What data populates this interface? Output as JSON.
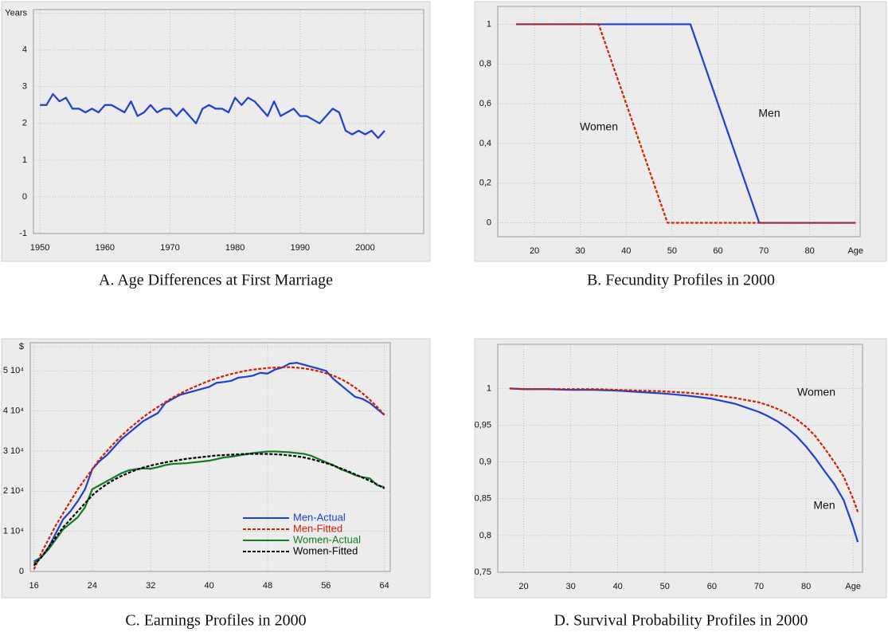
{
  "chart_data": [
    {
      "type": "line",
      "title": "A. Age Differences at First Marriage",
      "x": [
        1950,
        1951,
        1952,
        1953,
        1954,
        1955,
        1956,
        1957,
        1958,
        1959,
        1960,
        1961,
        1962,
        1963,
        1964,
        1965,
        1966,
        1967,
        1968,
        1969,
        1970,
        1971,
        1972,
        1973,
        1974,
        1975,
        1976,
        1977,
        1978,
        1979,
        1980,
        1981,
        1982,
        1983,
        1984,
        1985,
        1986,
        1987,
        1988,
        1989,
        1990,
        1991,
        1992,
        1993,
        1994,
        1995,
        1996,
        1997,
        1998,
        1999,
        2000,
        2001,
        2002,
        2003
      ],
      "values": [
        2.5,
        2.5,
        2.8,
        2.6,
        2.7,
        2.4,
        2.4,
        2.3,
        2.4,
        2.3,
        2.5,
        2.5,
        2.4,
        2.3,
        2.6,
        2.2,
        2.3,
        2.5,
        2.3,
        2.4,
        2.4,
        2.2,
        2.4,
        2.2,
        2.0,
        2.4,
        2.5,
        2.4,
        2.4,
        2.3,
        2.7,
        2.5,
        2.7,
        2.6,
        2.4,
        2.2,
        2.6,
        2.2,
        2.3,
        2.4,
        2.2,
        2.2,
        2.1,
        2.0,
        2.2,
        2.4,
        2.3,
        1.8,
        1.7,
        1.8,
        1.7,
        1.8,
        1.6,
        1.8
      ],
      "color": "#1f3fd0",
      "xlim": [
        1949,
        2009
      ],
      "xticks": [
        1950,
        1960,
        1970,
        1980,
        1990,
        2000
      ],
      "ylim": [
        -1,
        5.1
      ],
      "yticks": [
        -1,
        0,
        1,
        2,
        3,
        4,
        {
          "value": 5,
          "label": "Years"
        }
      ],
      "grid": true
    },
    {
      "type": "line",
      "title": "B. Fecundity Profiles in 2000",
      "series": [
        {
          "name": "Men",
          "color": "#1f3fd0",
          "dashed": false,
          "x": [
            16,
            54,
            69,
            90
          ],
          "values": [
            1,
            1,
            0,
            0
          ]
        },
        {
          "name": "Women",
          "color": "#cc2200",
          "dashed": true,
          "x": [
            16,
            34,
            49,
            90
          ],
          "values": [
            1,
            1,
            0,
            0
          ]
        }
      ],
      "xlim": [
        12,
        91
      ],
      "xticks": [
        20,
        30,
        40,
        50,
        60,
        70,
        80,
        {
          "value": 90,
          "label": "Age"
        }
      ],
      "ylim": [
        -0.07,
        1.09
      ],
      "yticks": [
        0,
        {
          "value": 0.2,
          "label": "0,2"
        },
        {
          "value": 0.4,
          "label": "0,4"
        },
        {
          "value": 0.6,
          "label": "0,6"
        },
        {
          "value": 0.8,
          "label": "0,8"
        },
        1
      ],
      "grid": true
    },
    {
      "type": "line",
      "title": "C. Earnings Profiles in 2000",
      "x": [
        16,
        17,
        18,
        19,
        20,
        21,
        22,
        23,
        24,
        25,
        26,
        27,
        28,
        29,
        30,
        31,
        32,
        33,
        34,
        35,
        36,
        37,
        38,
        39,
        40,
        41,
        42,
        43,
        44,
        45,
        46,
        47,
        48,
        49,
        50,
        51,
        52,
        53,
        54,
        55,
        56,
        57,
        58,
        59,
        60,
        61,
        62,
        63,
        64
      ],
      "series": [
        {
          "name": "Men-Actual",
          "color": "#1f3fd0",
          "dashed": false,
          "values": [
            2500,
            3500,
            6000,
            9500,
            13000,
            15000,
            17500,
            20500,
            25500,
            27500,
            29000,
            31000,
            33000,
            34500,
            36000,
            37500,
            38500,
            39500,
            42000,
            43000,
            44000,
            44500,
            45000,
            45500,
            46000,
            47000,
            47200,
            47500,
            48300,
            48500,
            48800,
            49500,
            49300,
            50300,
            50800,
            51800,
            52000,
            51500,
            51000,
            50500,
            50000,
            48000,
            46500,
            45000,
            43500,
            43000,
            42000,
            40500,
            39000
          ]
        },
        {
          "name": "Men-Fitted",
          "color": "#cc2200",
          "dashed": true,
          "values": [
            500,
            4500,
            8000,
            11500,
            14500,
            17500,
            20500,
            23000,
            25500,
            28000,
            30000,
            32000,
            33800,
            35500,
            37000,
            38500,
            39800,
            41000,
            42200,
            43300,
            44300,
            45200,
            46000,
            46800,
            47500,
            48100,
            48700,
            49200,
            49600,
            50000,
            50300,
            50500,
            50700,
            50800,
            50900,
            50900,
            50800,
            50600,
            50300,
            49900,
            49400,
            48800,
            48000,
            47000,
            45800,
            44400,
            42800,
            41000,
            39000
          ]
        },
        {
          "name": "Women-Actual",
          "color": "#117a22",
          "dashed": false,
          "values": [
            2000,
            3500,
            5500,
            8000,
            10500,
            12000,
            13500,
            16000,
            20500,
            21500,
            22500,
            23500,
            24500,
            25200,
            25500,
            25700,
            25600,
            26000,
            26500,
            26800,
            26900,
            27000,
            27200,
            27400,
            27600,
            28000,
            28400,
            28600,
            28900,
            29200,
            29500,
            29700,
            29900,
            29900,
            29800,
            29700,
            29500,
            29300,
            28800,
            28000,
            27200,
            26500,
            25500,
            24800,
            24000,
            23500,
            23200,
            21500,
            21000
          ]
        },
        {
          "name": "Women-Fitted",
          "color": "#000000",
          "dashed": true,
          "values": [
            1500,
            3500,
            6000,
            8500,
            11000,
            13000,
            15000,
            17000,
            19000,
            20500,
            21800,
            22900,
            23800,
            24600,
            25300,
            25900,
            26400,
            26800,
            27200,
            27500,
            27800,
            28100,
            28300,
            28500,
            28700,
            28900,
            29000,
            29100,
            29200,
            29300,
            29300,
            29300,
            29300,
            29200,
            29100,
            28900,
            28700,
            28400,
            28000,
            27500,
            27000,
            26400,
            25700,
            25000,
            24200,
            23400,
            22600,
            21700,
            20700
          ]
        }
      ],
      "xlim": [
        15.5,
        64.8
      ],
      "xticks": [
        16,
        24,
        32,
        40,
        48,
        56,
        64
      ],
      "ylim": [
        0,
        57000
      ],
      "yticks": [
        0,
        {
          "value": 10000,
          "label": "1 10⁴"
        },
        {
          "value": 20000,
          "label": "2 10⁴"
        },
        {
          "value": 30000,
          "label": "3 10⁴"
        },
        {
          "value": 40000,
          "label": "4 10⁴"
        },
        {
          "value": 50000,
          "label": "5 10⁴"
        },
        {
          "value": 56000,
          "label": "$"
        }
      ],
      "grid": true,
      "legend": "lower right"
    },
    {
      "type": "line",
      "title": "D. Survival Probability Profiles in 2000",
      "x": [
        17,
        20,
        25,
        30,
        35,
        40,
        45,
        50,
        55,
        60,
        65,
        70,
        72,
        74,
        76,
        78,
        80,
        82,
        84,
        86,
        88,
        90,
        91
      ],
      "series": [
        {
          "name": "Men",
          "color": "#1f3fd0",
          "dashed": false,
          "values": [
            1,
            0.999,
            0.999,
            0.998,
            0.998,
            0.997,
            0.995,
            0.993,
            0.99,
            0.986,
            0.979,
            0.968,
            0.962,
            0.955,
            0.946,
            0.935,
            0.921,
            0.905,
            0.887,
            0.87,
            0.848,
            0.812,
            0.791
          ]
        },
        {
          "name": "Women",
          "color": "#cc2200",
          "dashed": true,
          "values": [
            1,
            0.999,
            0.999,
            0.999,
            0.999,
            0.998,
            0.997,
            0.996,
            0.994,
            0.991,
            0.987,
            0.981,
            0.977,
            0.972,
            0.966,
            0.958,
            0.948,
            0.935,
            0.918,
            0.9,
            0.88,
            0.85,
            0.832
          ]
        }
      ],
      "xlim": [
        14.5,
        92
      ],
      "xticks": [
        20,
        30,
        40,
        50,
        60,
        70,
        80,
        {
          "value": 90,
          "label": "Age"
        }
      ],
      "ylim": [
        0.75,
        1.06
      ],
      "yticks": [
        {
          "value": 0.75,
          "label": "0,75"
        },
        {
          "value": 0.8,
          "label": "0,8"
        },
        {
          "value": 0.85,
          "label": "0,85"
        },
        {
          "value": 0.9,
          "label": "0,9"
        },
        {
          "value": 0.95,
          "label": "0,95"
        },
        1
      ],
      "grid": true
    }
  ]
}
